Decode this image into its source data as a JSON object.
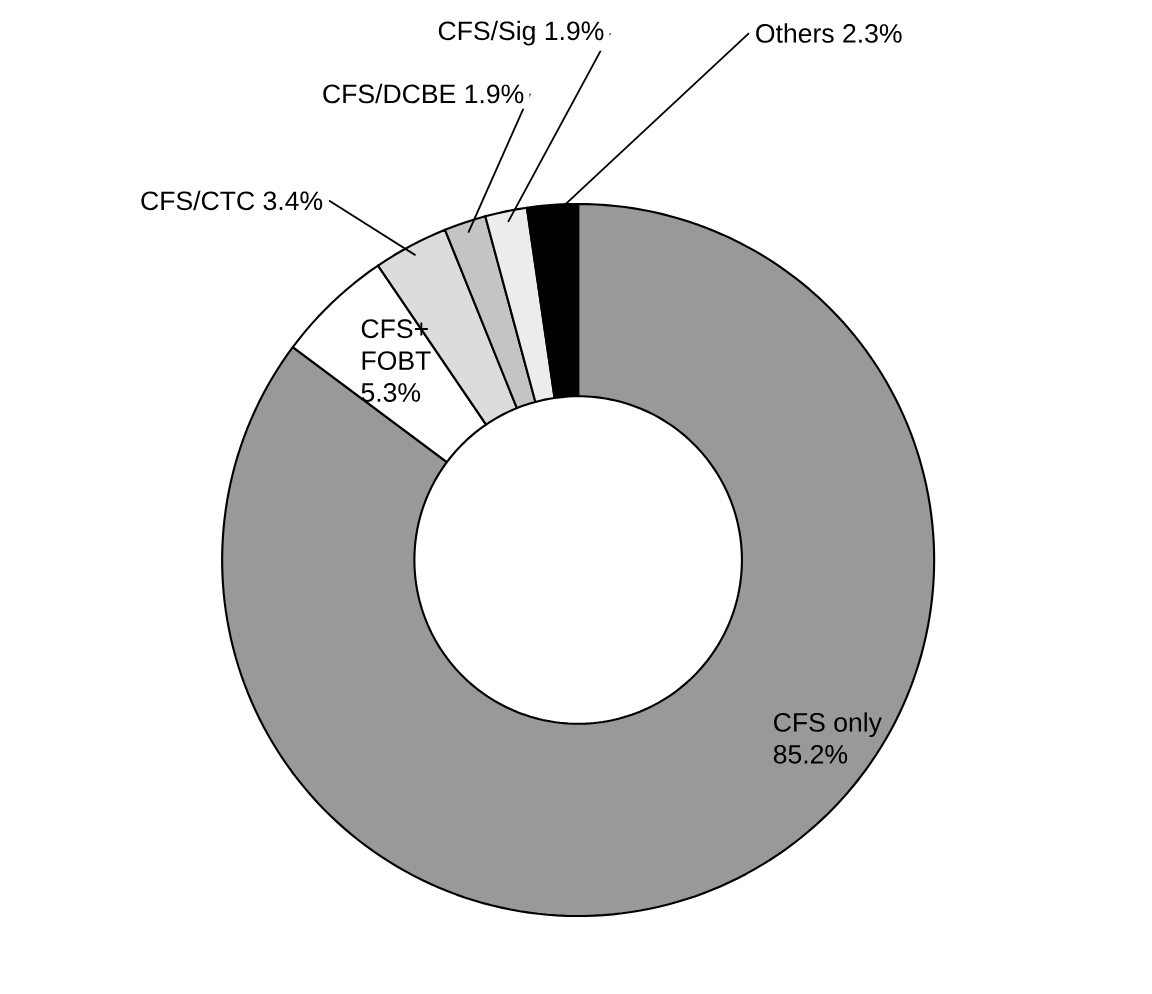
{
  "chart_data": {
    "type": "donut",
    "categories": [
      "CFS only",
      "CFS+FOBT",
      "CFS/CTC",
      "CFS/DCBE",
      "CFS/Sig",
      "Others"
    ],
    "values": [
      85.2,
      5.3,
      3.4,
      1.9,
      1.9,
      2.3
    ],
    "value_labels": [
      "85.2%",
      "5.3%",
      "3.4%",
      "1.9%",
      "1.9%",
      "2.3%"
    ],
    "colors": [
      "#999999",
      "#ffffff",
      "#dcdcdc",
      "#c4c4c4",
      "#ececec",
      "#000000"
    ]
  }
}
